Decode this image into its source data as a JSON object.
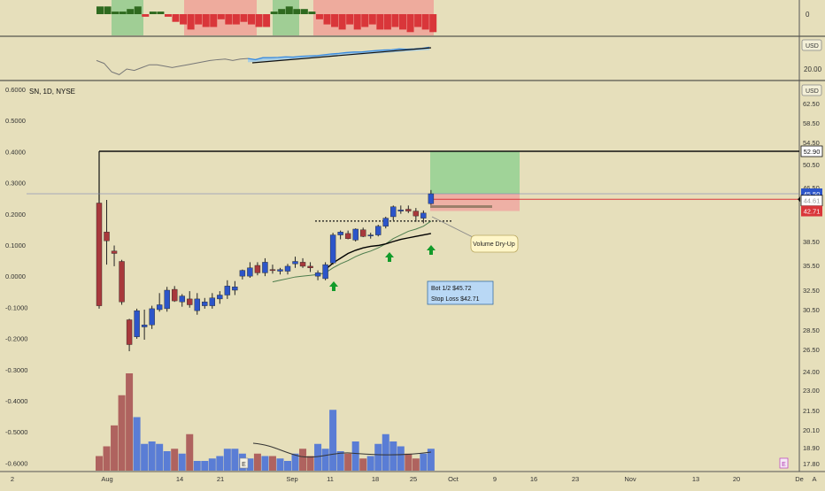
{
  "symbol": {
    "title": "SN, 1D, NYSE"
  },
  "currency": {
    "label_top": "USD",
    "label_main": "USD"
  },
  "colors": {
    "background": "#e6dfbb",
    "up": "#2c55c9",
    "down": "#a8393c",
    "wick": "#222222",
    "vol_up": "#4a72d8",
    "vol_down": "#a85555",
    "hist_up": "#2f6a1f",
    "hist_down": "#d9363a",
    "zone_green": "#8fc98c",
    "zone_red": "#f09e96",
    "rs_line": "#3a8be0",
    "rs_fill": "#9fcbe8",
    "ema_fast": "#4d7d4d",
    "ma_slow": "#000000",
    "target_green": "#8fcf90",
    "stop_red": "#f0a4a0",
    "annotation_fill": "#fff6c8",
    "box_fill": "#b9d8f5",
    "box_stroke": "#3a6ea5",
    "arrow_green": "#129b2a",
    "price_label_blue": "#2c55c9",
    "price_label_red": "#d9363a"
  },
  "panels": {
    "histogram": {
      "zero_label": "0"
    },
    "rs": {
      "label": "20.00"
    }
  },
  "chart_data": {
    "type": "candlestick",
    "title": "SN, 1D, NYSE",
    "x_ticks": [
      "2",
      "Aug",
      "14",
      "21",
      "Sep",
      "11",
      "18",
      "25",
      "Oct",
      "9",
      "16",
      "23",
      "Nov",
      "13",
      "20",
      "De",
      "A"
    ],
    "y_right_ticks": [
      "62.50",
      "58.50",
      "54.50",
      "50.50",
      "46.50",
      "42.50",
      "38.50",
      "35.50",
      "32.50",
      "30.50",
      "28.50",
      "26.50",
      "24.00",
      "23.00",
      "21.50",
      "20.10",
      "18.90",
      "17.80"
    ],
    "y_left_ticks": [
      "0.6000",
      "0.5000",
      "0.4000",
      "0.3000",
      "0.2000",
      "0.1000",
      "0.0000",
      "-0.1000",
      "-0.2000",
      "-0.3000",
      "-0.4000",
      "-0.5000",
      "-0.6000"
    ],
    "candles": [
      {
        "o": 44.0,
        "h": 44.5,
        "l": 30.6,
        "c": 30.9
      },
      {
        "o": 39.8,
        "h": 44.5,
        "l": 35.6,
        "c": 38.6
      },
      {
        "o": 37.3,
        "h": 38.0,
        "l": 35.4,
        "c": 37.0
      },
      {
        "o": 36.0,
        "h": 36.2,
        "l": 31.0,
        "c": 31.3
      },
      {
        "o": 29.5,
        "h": 29.6,
        "l": 26.3,
        "c": 27.0
      },
      {
        "o": 27.8,
        "h": 30.6,
        "l": 27.6,
        "c": 30.4
      },
      {
        "o": 28.8,
        "h": 30.5,
        "l": 27.5,
        "c": 29.0
      },
      {
        "o": 29.0,
        "h": 30.9,
        "l": 28.6,
        "c": 30.6
      },
      {
        "o": 30.5,
        "h": 32.2,
        "l": 30.3,
        "c": 31.0
      },
      {
        "o": 30.6,
        "h": 32.9,
        "l": 30.3,
        "c": 32.5
      },
      {
        "o": 32.6,
        "h": 33.0,
        "l": 31.3,
        "c": 31.4
      },
      {
        "o": 31.3,
        "h": 32.1,
        "l": 30.8,
        "c": 31.9
      },
      {
        "o": 31.6,
        "h": 32.4,
        "l": 30.7,
        "c": 31.0
      },
      {
        "o": 30.4,
        "h": 32.2,
        "l": 30.0,
        "c": 31.6
      },
      {
        "o": 30.9,
        "h": 31.7,
        "l": 30.6,
        "c": 31.3
      },
      {
        "o": 30.9,
        "h": 32.2,
        "l": 30.6,
        "c": 31.7
      },
      {
        "o": 31.6,
        "h": 32.4,
        "l": 31.1,
        "c": 32.0
      },
      {
        "o": 32.0,
        "h": 33.7,
        "l": 31.6,
        "c": 33.0
      },
      {
        "o": 32.5,
        "h": 33.6,
        "l": 32.0,
        "c": 32.9
      },
      {
        "o": 34.2,
        "h": 35.0,
        "l": 33.8,
        "c": 34.9
      },
      {
        "o": 34.2,
        "h": 35.9,
        "l": 34.0,
        "c": 35.2
      },
      {
        "o": 35.5,
        "h": 35.9,
        "l": 34.3,
        "c": 34.6
      },
      {
        "o": 34.6,
        "h": 36.4,
        "l": 34.2,
        "c": 35.9
      },
      {
        "o": 35.0,
        "h": 35.6,
        "l": 34.5,
        "c": 34.9
      },
      {
        "o": 34.8,
        "h": 35.2,
        "l": 34.4,
        "c": 35.0
      },
      {
        "o": 34.8,
        "h": 35.7,
        "l": 34.4,
        "c": 35.4
      },
      {
        "o": 35.7,
        "h": 36.6,
        "l": 35.2,
        "c": 36.0
      },
      {
        "o": 35.9,
        "h": 36.4,
        "l": 35.2,
        "c": 35.4
      },
      {
        "o": 35.4,
        "h": 35.9,
        "l": 34.7,
        "c": 35.2
      },
      {
        "o": 34.2,
        "h": 34.9,
        "l": 33.7,
        "c": 34.6
      },
      {
        "o": 33.9,
        "h": 35.9,
        "l": 33.7,
        "c": 35.6
      },
      {
        "o": 35.8,
        "h": 39.7,
        "l": 35.6,
        "c": 39.4
      },
      {
        "o": 39.4,
        "h": 40.0,
        "l": 38.8,
        "c": 39.8
      },
      {
        "o": 39.6,
        "h": 40.0,
        "l": 38.8,
        "c": 38.9
      },
      {
        "o": 38.7,
        "h": 40.3,
        "l": 38.5,
        "c": 40.2
      },
      {
        "o": 40.1,
        "h": 40.4,
        "l": 39.1,
        "c": 39.2
      },
      {
        "o": 39.3,
        "h": 39.7,
        "l": 38.9,
        "c": 39.4
      },
      {
        "o": 39.4,
        "h": 40.8,
        "l": 39.2,
        "c": 40.6
      },
      {
        "o": 40.6,
        "h": 41.9,
        "l": 40.3,
        "c": 41.7
      },
      {
        "o": 41.9,
        "h": 43.6,
        "l": 41.4,
        "c": 43.4
      },
      {
        "o": 42.7,
        "h": 43.6,
        "l": 42.3,
        "c": 42.9
      },
      {
        "o": 43.0,
        "h": 43.6,
        "l": 42.4,
        "c": 42.7
      },
      {
        "o": 42.7,
        "h": 43.2,
        "l": 41.2,
        "c": 42.0
      },
      {
        "o": 41.7,
        "h": 42.8,
        "l": 41.0,
        "c": 42.4
      },
      {
        "o": 43.9,
        "h": 46.1,
        "l": 43.7,
        "c": 45.5
      }
    ],
    "volume": [
      0.3,
      0.5,
      0.93,
      1.55,
      2.0,
      1.1,
      0.55,
      0.6,
      0.55,
      0.4,
      0.45,
      0.35,
      0.75,
      0.2,
      0.2,
      0.25,
      0.3,
      0.45,
      0.45,
      0.35,
      0.25,
      0.35,
      0.3,
      0.3,
      0.25,
      0.2,
      0.35,
      0.45,
      0.3,
      0.55,
      0.45,
      1.25,
      0.4,
      0.35,
      0.6,
      0.25,
      0.3,
      0.55,
      0.75,
      0.6,
      0.5,
      0.35,
      0.25,
      0.35,
      0.45
    ],
    "histogram": [
      3,
      3,
      1,
      1,
      2,
      3,
      -1,
      1,
      1,
      -1,
      -3,
      -4,
      -6,
      -4,
      -5,
      -5,
      -2,
      -4,
      -4,
      -3,
      -4,
      -5,
      -5,
      1,
      2,
      3,
      2,
      2,
      1,
      -2,
      -4,
      -5,
      -6,
      -4,
      -6,
      -5,
      -4,
      -6,
      -6,
      -5,
      -6,
      -7,
      -5,
      -6,
      -7
    ],
    "ma_fast": [
      null,
      null,
      null,
      null,
      null,
      null,
      null,
      null,
      null,
      null,
      null,
      null,
      null,
      null,
      null,
      null,
      null,
      null,
      null,
      null,
      null,
      null,
      null,
      33.5,
      33.7,
      33.9,
      34.1,
      34.2,
      34.3,
      34.4,
      34.6,
      35.2,
      35.7,
      36.1,
      36.6,
      37.0,
      37.3,
      37.7,
      38.2,
      38.9,
      39.4,
      39.9,
      40.2,
      40.6,
      41.3
    ],
    "ma_slow": [
      null,
      null,
      null,
      null,
      null,
      null,
      null,
      null,
      null,
      null,
      null,
      null,
      null,
      null,
      null,
      null,
      null,
      null,
      null,
      null,
      null,
      null,
      null,
      null,
      null,
      null,
      null,
      null,
      null,
      null,
      35.0,
      35.8,
      36.4,
      37.0,
      37.4,
      37.7,
      37.9,
      38.0,
      38.2,
      38.5,
      38.8,
      39.0,
      39.2,
      39.4,
      39.6
    ],
    "rs_line": [
      0.55,
      0.45,
      0.15,
      0.05,
      0.25,
      0.2,
      0.3,
      0.4,
      0.4,
      0.35,
      0.3,
      0.35,
      0.4,
      0.45,
      0.5,
      0.55,
      0.58,
      0.6,
      0.55,
      0.6,
      0.62,
      0.58,
      0.65,
      0.65,
      0.66,
      0.68,
      0.67,
      0.7,
      0.71,
      0.72,
      0.75,
      0.78,
      0.8,
      0.83,
      0.85,
      0.85,
      0.88,
      0.9,
      0.92,
      0.93,
      0.96,
      0.95,
      0.96,
      0.98,
      1.02
    ],
    "levels": {
      "resistance": 52.9,
      "current": 45.5,
      "stop": 42.71,
      "entry": 45.72
    },
    "price_labels": {
      "resistance": "52.90",
      "current": "45.50",
      "stop": "42.71",
      "hidden": "44.61"
    },
    "annotations": {
      "volume_dry_up": "Volume Dry-Up",
      "trade_line1": "Bot 1/2 $45.72",
      "trade_line2": "Stop Loss $42.71",
      "earnings_marker": "E"
    }
  }
}
